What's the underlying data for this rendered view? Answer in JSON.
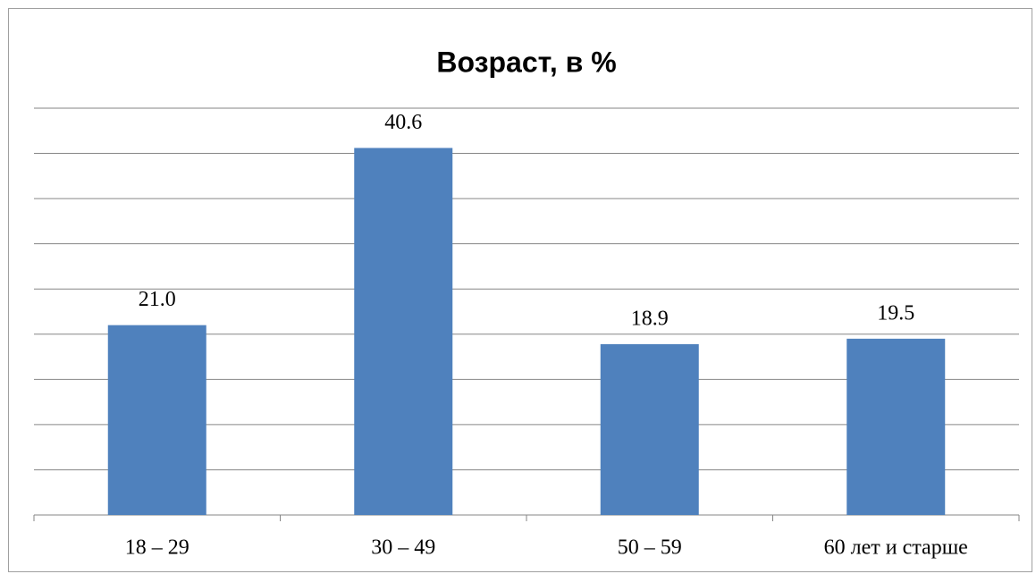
{
  "chart_data": {
    "type": "bar",
    "title": "Возраст, в %",
    "categories": [
      "18 – 29",
      "30 – 49",
      "50 – 59",
      "60 лет и старше"
    ],
    "values": [
      21.0,
      40.6,
      18.9,
      19.5
    ],
    "value_labels": [
      "21.0",
      "40.6",
      "18.9",
      "19.5"
    ],
    "color": "#4f81bd",
    "ylim": [
      0,
      45
    ],
    "yticks": [
      0,
      5,
      10,
      15,
      20,
      25,
      30,
      35,
      40,
      45
    ],
    "grid": true
  }
}
